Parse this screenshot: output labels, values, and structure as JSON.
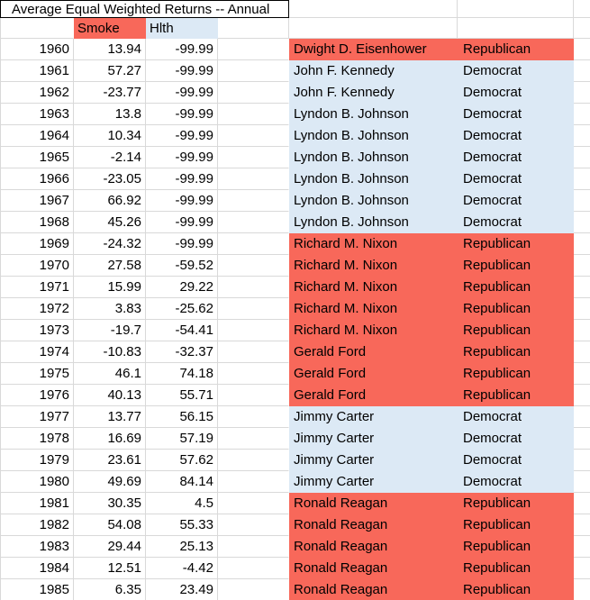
{
  "title": "Average Equal Weighted Returns -- Annual",
  "headers": {
    "smoke": "Smoke",
    "hlth": "Hlth"
  },
  "colors": {
    "republican_fill": "#f8685a",
    "democrat_fill": "#dce9f5",
    "gridline": "#d9d9d9",
    "title_border": "#000000"
  },
  "party_colors": {
    "Republican": "republican_fill",
    "Democrat": "democrat_fill"
  },
  "rows": [
    {
      "year": "1960",
      "smoke": "13.94",
      "hlth": "-99.99",
      "president": "Dwight D. Eisenhower",
      "party": "Republican"
    },
    {
      "year": "1961",
      "smoke": "57.27",
      "hlth": "-99.99",
      "president": "John F. Kennedy",
      "party": "Democrat"
    },
    {
      "year": "1962",
      "smoke": "-23.77",
      "hlth": "-99.99",
      "president": "John F. Kennedy",
      "party": "Democrat"
    },
    {
      "year": "1963",
      "smoke": "13.8",
      "hlth": "-99.99",
      "president": "Lyndon B. Johnson",
      "party": "Democrat"
    },
    {
      "year": "1964",
      "smoke": "10.34",
      "hlth": "-99.99",
      "president": "Lyndon B. Johnson",
      "party": "Democrat"
    },
    {
      "year": "1965",
      "smoke": "-2.14",
      "hlth": "-99.99",
      "president": "Lyndon B. Johnson",
      "party": "Democrat"
    },
    {
      "year": "1966",
      "smoke": "-23.05",
      "hlth": "-99.99",
      "president": "Lyndon B. Johnson",
      "party": "Democrat"
    },
    {
      "year": "1967",
      "smoke": "66.92",
      "hlth": "-99.99",
      "president": "Lyndon B. Johnson",
      "party": "Democrat"
    },
    {
      "year": "1968",
      "smoke": "45.26",
      "hlth": "-99.99",
      "president": "Lyndon B. Johnson",
      "party": "Democrat"
    },
    {
      "year": "1969",
      "smoke": "-24.32",
      "hlth": "-99.99",
      "president": "Richard M. Nixon",
      "party": "Republican"
    },
    {
      "year": "1970",
      "smoke": "27.58",
      "hlth": "-59.52",
      "president": "Richard M. Nixon",
      "party": "Republican"
    },
    {
      "year": "1971",
      "smoke": "15.99",
      "hlth": "29.22",
      "president": "Richard M. Nixon",
      "party": "Republican"
    },
    {
      "year": "1972",
      "smoke": "3.83",
      "hlth": "-25.62",
      "president": "Richard M. Nixon",
      "party": "Republican"
    },
    {
      "year": "1973",
      "smoke": "-19.7",
      "hlth": "-54.41",
      "president": "Richard M. Nixon",
      "party": "Republican"
    },
    {
      "year": "1974",
      "smoke": "-10.83",
      "hlth": "-32.37",
      "president": "Gerald Ford",
      "party": "Republican"
    },
    {
      "year": "1975",
      "smoke": "46.1",
      "hlth": "74.18",
      "president": "Gerald Ford",
      "party": "Republican"
    },
    {
      "year": "1976",
      "smoke": "40.13",
      "hlth": "55.71",
      "president": "Gerald Ford",
      "party": "Republican"
    },
    {
      "year": "1977",
      "smoke": "13.77",
      "hlth": "56.15",
      "president": "Jimmy Carter",
      "party": "Democrat"
    },
    {
      "year": "1978",
      "smoke": "16.69",
      "hlth": "57.19",
      "president": "Jimmy Carter",
      "party": "Democrat"
    },
    {
      "year": "1979",
      "smoke": "23.61",
      "hlth": "57.62",
      "president": "Jimmy Carter",
      "party": "Democrat"
    },
    {
      "year": "1980",
      "smoke": "49.69",
      "hlth": "84.14",
      "president": "Jimmy Carter",
      "party": "Democrat"
    },
    {
      "year": "1981",
      "smoke": "30.35",
      "hlth": "4.5",
      "president": "Ronald Reagan",
      "party": "Republican"
    },
    {
      "year": "1982",
      "smoke": "54.08",
      "hlth": "55.33",
      "president": "Ronald Reagan",
      "party": "Republican"
    },
    {
      "year": "1983",
      "smoke": "29.44",
      "hlth": "25.13",
      "president": "Ronald Reagan",
      "party": "Republican"
    },
    {
      "year": "1984",
      "smoke": "12.51",
      "hlth": "-4.42",
      "president": "Ronald Reagan",
      "party": "Republican"
    },
    {
      "year": "1985",
      "smoke": "6.35",
      "hlth": "23.49",
      "president": "Ronald Reagan",
      "party": "Republican"
    }
  ]
}
